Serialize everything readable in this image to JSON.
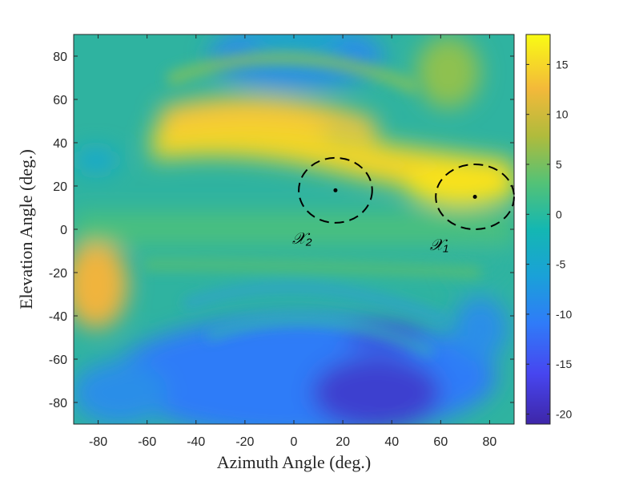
{
  "chart_data": {
    "type": "heatmap",
    "title": "",
    "xlabel": "Azimuth Angle (deg.)",
    "ylabel": "Elevation Angle (deg.)",
    "xlim": [
      -90,
      90
    ],
    "ylim": [
      -90,
      90
    ],
    "x_ticks": [
      -80,
      -60,
      -40,
      -20,
      0,
      20,
      40,
      60,
      80
    ],
    "y_ticks": [
      80,
      60,
      40,
      20,
      0,
      -20,
      -40,
      -60,
      -80
    ],
    "colorbar": {
      "colormap": "parula",
      "range": [
        -21,
        18
      ],
      "ticks": [
        15,
        10,
        5,
        0,
        -5,
        -10,
        -15,
        -20
      ]
    },
    "grid": false,
    "annotations": [
      {
        "label": "𝒳₁",
        "center": [
          74,
          15
        ],
        "radius_x": 16,
        "radius_y": 15
      },
      {
        "label": "𝒳₂",
        "center": [
          17,
          18
        ],
        "radius_x": 15,
        "radius_y": 15
      }
    ]
  }
}
